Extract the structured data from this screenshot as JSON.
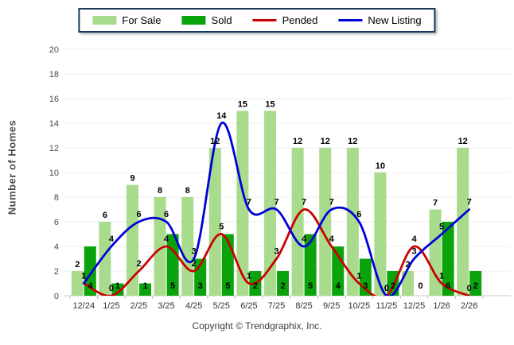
{
  "chart_data": {
    "type": "combo",
    "title": "",
    "categories": [
      "12/24",
      "1/25",
      "2/25",
      "3/25",
      "4/25",
      "5/25",
      "6/25",
      "7/25",
      "8/25",
      "9/25",
      "10/25",
      "11/25",
      "12/25",
      "1/26",
      "2/26"
    ],
    "series": [
      {
        "name": "For Sale",
        "type": "bar",
        "color": "#A9DB8C",
        "values": [
          2,
          6,
          9,
          8,
          8,
          12,
          15,
          15,
          12,
          12,
          12,
          10,
          2,
          7,
          12
        ]
      },
      {
        "name": "Sold",
        "type": "bar",
        "color": "#0BA30B",
        "values": [
          4,
          1,
          1,
          5,
          3,
          5,
          2,
          2,
          5,
          4,
          3,
          2,
          0,
          6,
          2
        ]
      },
      {
        "name": "Pended",
        "type": "line",
        "color": "#CC0000",
        "values": [
          1,
          0,
          2,
          4,
          2,
          5,
          1,
          3,
          7,
          4,
          1,
          0,
          4,
          1,
          0
        ]
      },
      {
        "name": "New Listing",
        "type": "line",
        "color": "#0000D9",
        "values": [
          1,
          4,
          6,
          6,
          3,
          14,
          7,
          7,
          4,
          7,
          6,
          0,
          3,
          5,
          7
        ]
      }
    ],
    "ylabel": "Number of Homes",
    "xlabel": "",
    "ylim": [
      0,
      20
    ],
    "ytick_step": 2,
    "grid": true,
    "legend_position": "top"
  },
  "footer": {
    "copyright": "Copyright © Trendgraphix, Inc."
  },
  "style": {
    "grid_color": "#ECECEC",
    "baseline_color": "#C8C8C8",
    "tick_color": "#BFBFBF",
    "ytick_label_color": "#4a4a4a",
    "xtick_label_color": "#333333",
    "data_label_color": "#000000",
    "legend_border_color": "#17375E"
  }
}
